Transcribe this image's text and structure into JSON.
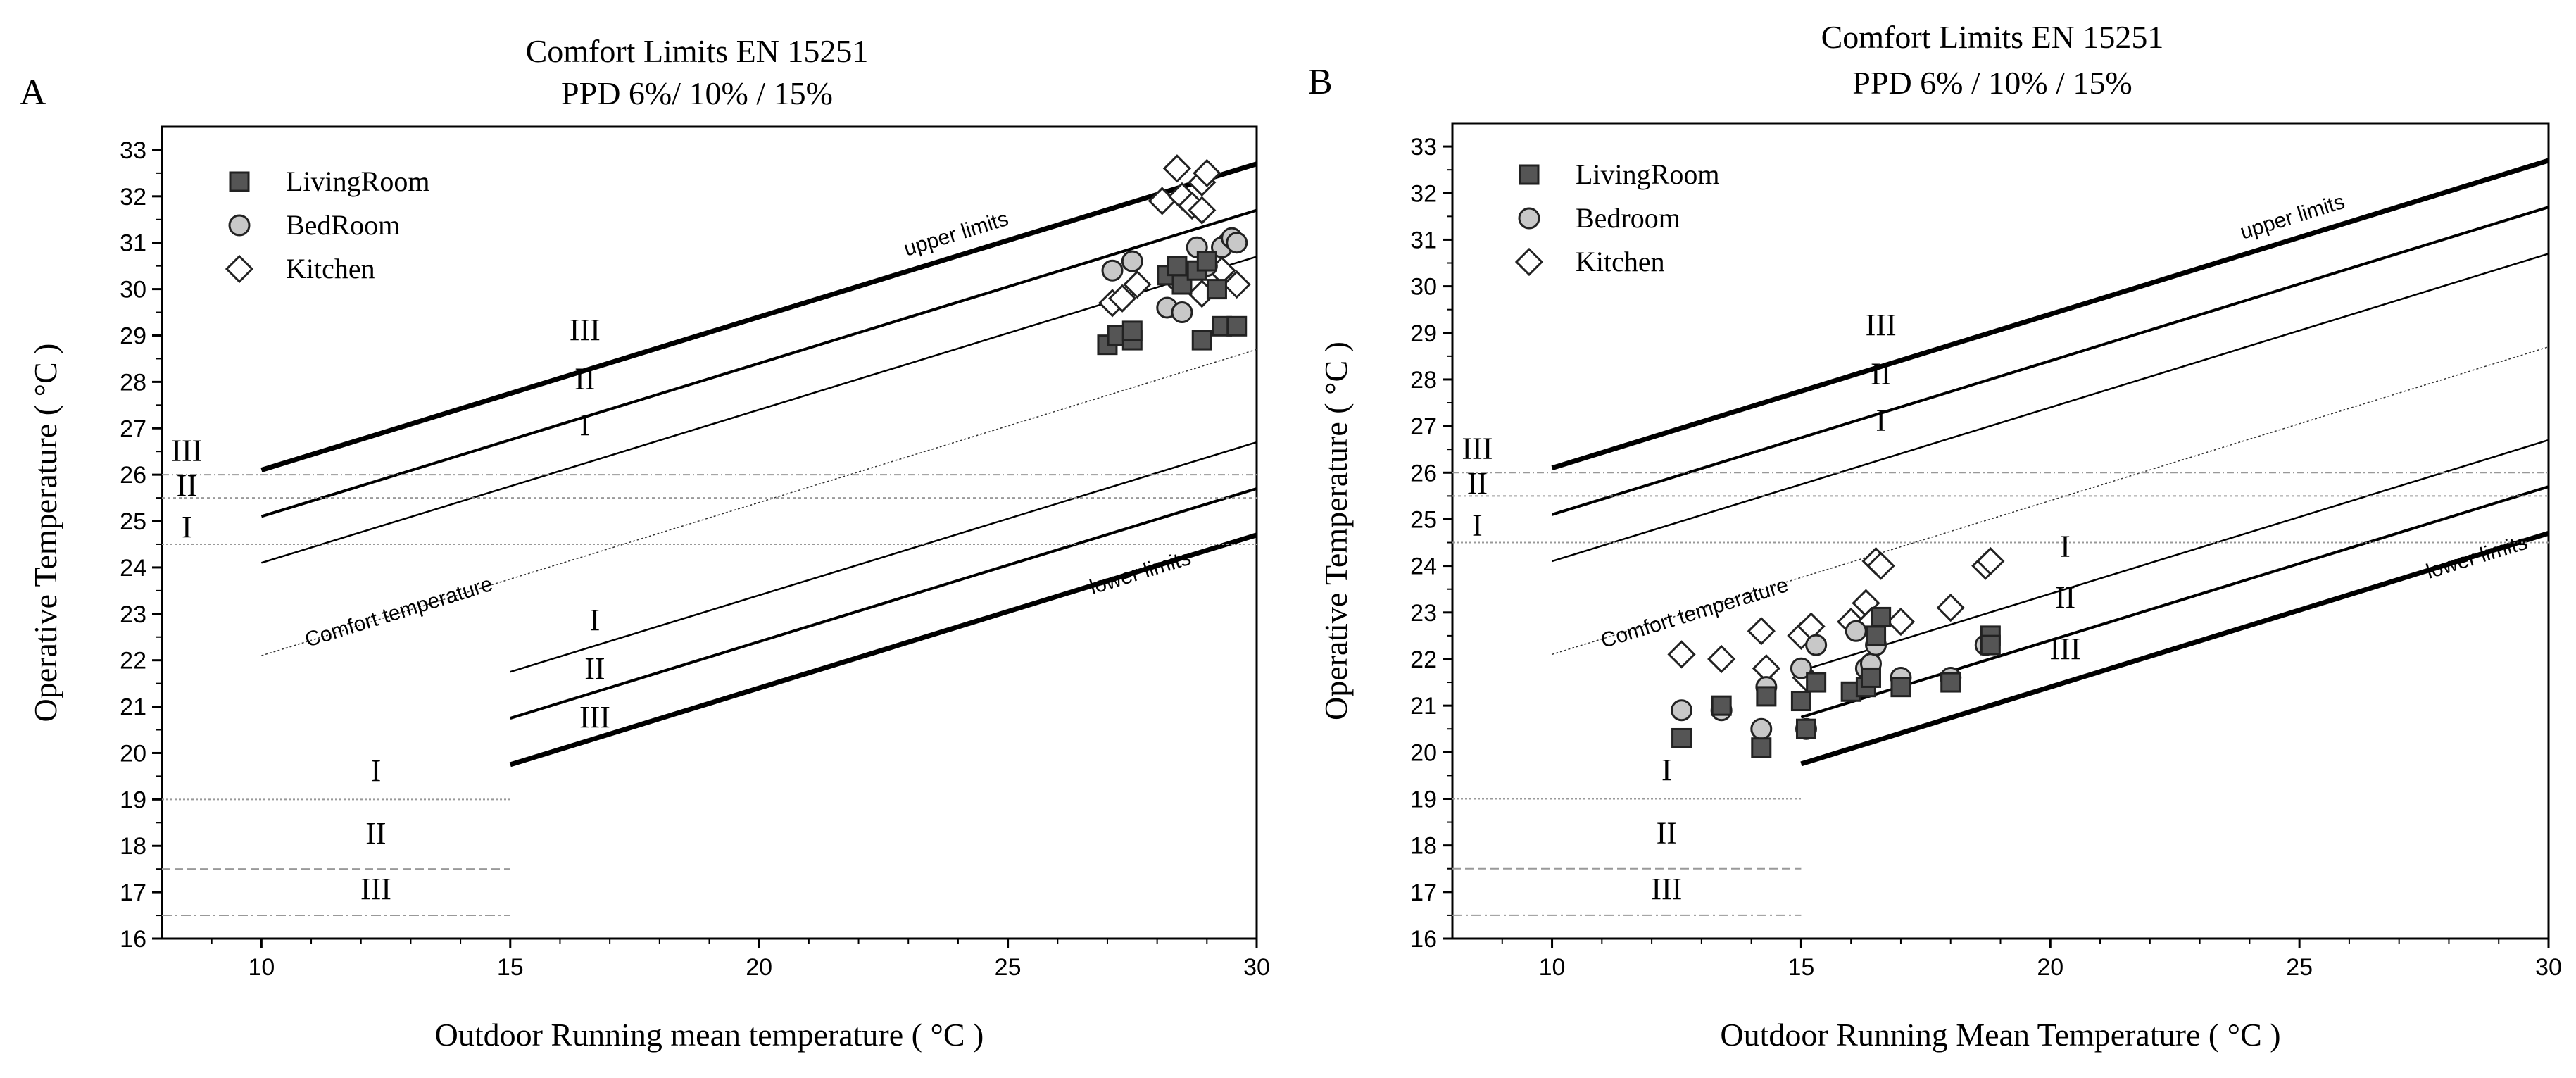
{
  "chart_data": [
    {
      "type": "scatter",
      "panel_label": "A",
      "title": [
        "Comfort Limits EN 15251",
        "PPD 6%/ 10% / 15%"
      ],
      "xlabel": "Outdoor Running mean temperature ( °C  )",
      "ylabel": "Operative Temperature ( °C  )",
      "xlim": [
        8,
        30
      ],
      "ylim": [
        16,
        33.5
      ],
      "xticks": [
        10,
        15,
        20,
        25,
        30
      ],
      "yticks": [
        16,
        17,
        18,
        19,
        20,
        21,
        22,
        23,
        24,
        25,
        26,
        27,
        28,
        29,
        30,
        31,
        32,
        33
      ],
      "legend": [
        "LivingRoom",
        "BedRoom",
        "Kitchen"
      ],
      "upper_label": "upper limits",
      "lower_label": "lower limits",
      "comfort_label": "Comfort temperature",
      "upper_class_labels": [
        {
          "text": "III",
          "x": 16.5,
          "y": 28.9
        },
        {
          "text": "II",
          "x": 16.5,
          "y": 27.85
        },
        {
          "text": "I",
          "x": 16.5,
          "y": 26.85
        }
      ],
      "lower_class_labels": [
        {
          "text": "I",
          "x": 16.7,
          "y": 22.65
        },
        {
          "text": "II",
          "x": 16.7,
          "y": 21.6
        },
        {
          "text": "III",
          "x": 16.7,
          "y": 20.55
        }
      ],
      "winter_labels": [
        {
          "text": "I",
          "x": 12.3,
          "y": 19.4
        },
        {
          "text": "II",
          "x": 12.3,
          "y": 18.05
        },
        {
          "text": "III",
          "x": 12.3,
          "y": 16.85
        }
      ],
      "summer_labels": [
        {
          "text": "III",
          "x": 8.5,
          "y": 26.3
        },
        {
          "text": "II",
          "x": 8.5,
          "y": 25.55
        },
        {
          "text": "I",
          "x": 8.5,
          "y": 24.65
        }
      ],
      "series": [
        {
          "name": "LivingRoom",
          "marker": "square",
          "color": "#555555",
          "points": [
            [
              27.0,
              28.8
            ],
            [
              27.2,
              29.0
            ],
            [
              27.5,
              28.9
            ],
            [
              27.5,
              29.1
            ],
            [
              28.2,
              30.3
            ],
            [
              28.4,
              30.5
            ],
            [
              28.5,
              30.1
            ],
            [
              28.8,
              30.4
            ],
            [
              28.9,
              28.9
            ],
            [
              29.0,
              30.6
            ],
            [
              29.2,
              30.0
            ],
            [
              29.3,
              29.2
            ],
            [
              29.6,
              29.2
            ]
          ]
        },
        {
          "name": "BedRoom",
          "marker": "circle",
          "color": "#c8c8c8",
          "points": [
            [
              27.1,
              30.4
            ],
            [
              27.5,
              30.6
            ],
            [
              28.2,
              29.6
            ],
            [
              28.4,
              30.2
            ],
            [
              28.5,
              29.5
            ],
            [
              28.8,
              30.9
            ],
            [
              29.0,
              30.5
            ],
            [
              29.3,
              30.9
            ],
            [
              29.5,
              31.1
            ],
            [
              29.6,
              31.0
            ]
          ]
        },
        {
          "name": "Kitchen",
          "marker": "diamond",
          "color": "#ffffff",
          "points": [
            [
              27.1,
              29.7
            ],
            [
              27.3,
              29.8
            ],
            [
              27.6,
              30.1
            ],
            [
              28.1,
              31.9
            ],
            [
              28.4,
              32.6
            ],
            [
              28.5,
              32.0
            ],
            [
              28.7,
              31.8
            ],
            [
              28.9,
              32.3
            ],
            [
              28.9,
              31.7
            ],
            [
              29.0,
              32.5
            ],
            [
              28.9,
              29.9
            ],
            [
              29.3,
              30.4
            ],
            [
              29.6,
              30.1
            ],
            [
              29.4,
              31.0
            ]
          ]
        }
      ],
      "lines": [
        {
          "role": "upper III",
          "x": [
            10,
            30
          ],
          "y": [
            26.1,
            32.7
          ],
          "width": 7,
          "dash": "",
          "color": "#000000"
        },
        {
          "role": "upper II",
          "x": [
            10,
            30
          ],
          "y": [
            25.1,
            31.7
          ],
          "width": 4,
          "dash": "",
          "color": "#000000"
        },
        {
          "role": "upper I",
          "x": [
            10,
            30
          ],
          "y": [
            24.1,
            30.7
          ],
          "width": 2.5,
          "dash": "",
          "color": "#000000"
        },
        {
          "role": "comfort",
          "x": [
            10,
            30
          ],
          "y": [
            22.1,
            28.7
          ],
          "width": 1.5,
          "dash": "3,3",
          "color": "#333333"
        },
        {
          "role": "lower I",
          "x": [
            15,
            30
          ],
          "y": [
            21.75,
            26.7
          ],
          "width": 2.5,
          "dash": "",
          "color": "#000000"
        },
        {
          "role": "lower II",
          "x": [
            15,
            30
          ],
          "y": [
            20.75,
            25.7
          ],
          "width": 4,
          "dash": "",
          "color": "#000000"
        },
        {
          "role": "lower III",
          "x": [
            15,
            30
          ],
          "y": [
            19.75,
            24.7
          ],
          "width": 7,
          "dash": "",
          "color": "#000000"
        },
        {
          "role": "summer III",
          "x": [
            8,
            30
          ],
          "y": [
            26,
            26
          ],
          "width": 2,
          "dash": "10,4,2,4",
          "color": "#999999"
        },
        {
          "role": "summer II",
          "x": [
            8,
            30
          ],
          "y": [
            25.5,
            25.5
          ],
          "width": 2,
          "dash": "4,4",
          "color": "#999999"
        },
        {
          "role": "summer I",
          "x": [
            8,
            30
          ],
          "y": [
            24.5,
            24.5
          ],
          "width": 2,
          "dash": "3,3",
          "color": "#999999"
        },
        {
          "role": "winter I",
          "x": [
            8,
            15
          ],
          "y": [
            19,
            19
          ],
          "width": 2,
          "dash": "3,3",
          "color": "#999999"
        },
        {
          "role": "winter II",
          "x": [
            8,
            15
          ],
          "y": [
            17.5,
            17.5
          ],
          "width": 2,
          "dash": "12,6",
          "color": "#999999"
        },
        {
          "role": "winter III",
          "x": [
            8,
            15
          ],
          "y": [
            16.5,
            16.5
          ],
          "width": 2,
          "dash": "14,5,3,5",
          "color": "#999999"
        }
      ]
    },
    {
      "type": "scatter",
      "panel_label": "B",
      "title": [
        "Comfort Limits EN 15251",
        "PPD 6% / 10% / 15%"
      ],
      "xlabel": "Outdoor Running Mean Temperature ( °C  )",
      "ylabel": "Operative Temperature ( °C  )",
      "xlim": [
        8,
        30
      ],
      "ylim": [
        16,
        33.5
      ],
      "xticks": [
        10,
        15,
        20,
        25,
        30
      ],
      "yticks": [
        16,
        17,
        18,
        19,
        20,
        21,
        22,
        23,
        24,
        25,
        26,
        27,
        28,
        29,
        30,
        31,
        32,
        33
      ],
      "legend": [
        "LivingRoom",
        "Bedroom",
        "Kitchen"
      ],
      "upper_label": "upper limits",
      "lower_label": "lower limits",
      "comfort_label": "Comfort temperature",
      "upper_class_labels": [
        {
          "text": "III",
          "x": 16.6,
          "y": 28.95
        },
        {
          "text": "II",
          "x": 16.6,
          "y": 27.9
        },
        {
          "text": "I",
          "x": 16.6,
          "y": 26.9
        }
      ],
      "lower_class_labels": [
        {
          "text": "I",
          "x": 20.3,
          "y": 24.2
        },
        {
          "text": "II",
          "x": 20.3,
          "y": 23.1
        },
        {
          "text": "III",
          "x": 20.3,
          "y": 22.0
        }
      ],
      "winter_labels": [
        {
          "text": "I",
          "x": 12.3,
          "y": 19.4
        },
        {
          "text": "II",
          "x": 12.3,
          "y": 18.05
        },
        {
          "text": "III",
          "x": 12.3,
          "y": 16.85
        }
      ],
      "summer_labels": [
        {
          "text": "III",
          "x": 8.5,
          "y": 26.3
        },
        {
          "text": "II",
          "x": 8.5,
          "y": 25.55
        },
        {
          "text": "I",
          "x": 8.5,
          "y": 24.65
        }
      ],
      "series": [
        {
          "name": "LivingRoom",
          "marker": "square",
          "color": "#555555",
          "points": [
            [
              12.6,
              20.3
            ],
            [
              13.4,
              21.0
            ],
            [
              14.2,
              20.1
            ],
            [
              14.3,
              21.2
            ],
            [
              15.0,
              21.1
            ],
            [
              15.1,
              20.5
            ],
            [
              15.3,
              21.5
            ],
            [
              16.0,
              21.3
            ],
            [
              16.3,
              21.4
            ],
            [
              16.4,
              21.6
            ],
            [
              16.5,
              22.5
            ],
            [
              16.6,
              22.9
            ],
            [
              17.0,
              21.4
            ],
            [
              18.0,
              21.5
            ],
            [
              18.8,
              22.5
            ],
            [
              18.8,
              22.3
            ]
          ]
        },
        {
          "name": "Bedroom",
          "marker": "circle",
          "color": "#c8c8c8",
          "points": [
            [
              12.6,
              20.9
            ],
            [
              13.4,
              20.9
            ],
            [
              14.2,
              20.5
            ],
            [
              14.3,
              21.4
            ],
            [
              15.0,
              21.8
            ],
            [
              15.1,
              20.5
            ],
            [
              15.3,
              22.3
            ],
            [
              16.1,
              22.6
            ],
            [
              16.3,
              21.8
            ],
            [
              16.4,
              21.9
            ],
            [
              16.5,
              22.3
            ],
            [
              17.0,
              21.6
            ],
            [
              18.0,
              21.6
            ],
            [
              18.7,
              22.3
            ]
          ]
        },
        {
          "name": "Kitchen",
          "marker": "diamond",
          "color": "#ffffff",
          "points": [
            [
              12.6,
              22.1
            ],
            [
              13.4,
              22.0
            ],
            [
              14.2,
              22.6
            ],
            [
              14.3,
              21.8
            ],
            [
              15.0,
              22.5
            ],
            [
              15.2,
              22.7
            ],
            [
              15.1,
              21.6
            ],
            [
              16.0,
              22.8
            ],
            [
              16.3,
              23.2
            ],
            [
              16.4,
              22.8
            ],
            [
              16.5,
              24.1
            ],
            [
              16.6,
              24.0
            ],
            [
              17.0,
              22.8
            ],
            [
              18.0,
              23.1
            ],
            [
              18.7,
              24.0
            ],
            [
              18.8,
              24.1
            ]
          ]
        }
      ],
      "lines": [
        {
          "role": "upper III",
          "x": [
            10,
            30
          ],
          "y": [
            26.1,
            32.7
          ],
          "width": 7,
          "dash": "",
          "color": "#000000"
        },
        {
          "role": "upper II",
          "x": [
            10,
            30
          ],
          "y": [
            25.1,
            31.7
          ],
          "width": 4,
          "dash": "",
          "color": "#000000"
        },
        {
          "role": "upper I",
          "x": [
            10,
            30
          ],
          "y": [
            24.1,
            30.7
          ],
          "width": 2.5,
          "dash": "",
          "color": "#000000"
        },
        {
          "role": "comfort",
          "x": [
            10,
            30
          ],
          "y": [
            22.1,
            28.7
          ],
          "width": 1.5,
          "dash": "3,3",
          "color": "#333333"
        },
        {
          "role": "lower I",
          "x": [
            15,
            30
          ],
          "y": [
            21.75,
            26.7
          ],
          "width": 2.5,
          "dash": "",
          "color": "#000000"
        },
        {
          "role": "lower II",
          "x": [
            15,
            30
          ],
          "y": [
            20.75,
            25.7
          ],
          "width": 4,
          "dash": "",
          "color": "#000000"
        },
        {
          "role": "lower III",
          "x": [
            15,
            30
          ],
          "y": [
            19.75,
            24.7
          ],
          "width": 7,
          "dash": "",
          "color": "#000000"
        },
        {
          "role": "summer III",
          "x": [
            8,
            30
          ],
          "y": [
            26,
            26
          ],
          "width": 2,
          "dash": "10,4,2,4",
          "color": "#999999"
        },
        {
          "role": "summer II",
          "x": [
            8,
            30
          ],
          "y": [
            25.5,
            25.5
          ],
          "width": 2,
          "dash": "4,4",
          "color": "#999999"
        },
        {
          "role": "summer I",
          "x": [
            8,
            30
          ],
          "y": [
            24.5,
            24.5
          ],
          "width": 2,
          "dash": "3,3",
          "color": "#999999"
        },
        {
          "role": "winter I",
          "x": [
            8,
            15
          ],
          "y": [
            19,
            19
          ],
          "width": 2,
          "dash": "3,3",
          "color": "#999999"
        },
        {
          "role": "winter II",
          "x": [
            8,
            15
          ],
          "y": [
            17.5,
            17.5
          ],
          "width": 2,
          "dash": "12,6",
          "color": "#999999"
        },
        {
          "role": "winter III",
          "x": [
            8,
            15
          ],
          "y": [
            16.5,
            16.5
          ],
          "width": 2,
          "dash": "14,5,3,5",
          "color": "#999999"
        }
      ]
    }
  ]
}
